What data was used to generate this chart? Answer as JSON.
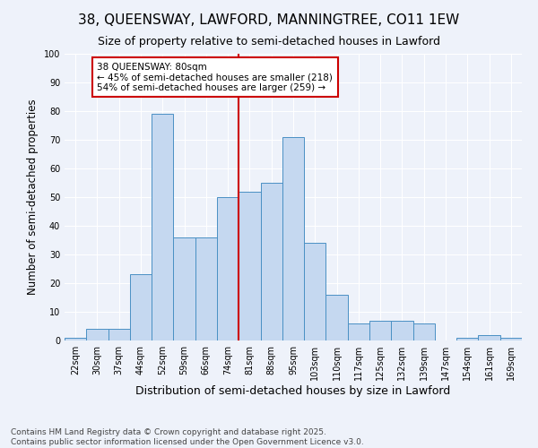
{
  "title": "38, QUEENSWAY, LAWFORD, MANNINGTREE, CO11 1EW",
  "subtitle": "Size of property relative to semi-detached houses in Lawford",
  "xlabel": "Distribution of semi-detached houses by size in Lawford",
  "ylabel": "Number of semi-detached properties",
  "categories": [
    "22sqm",
    "30sqm",
    "37sqm",
    "44sqm",
    "52sqm",
    "59sqm",
    "66sqm",
    "74sqm",
    "81sqm",
    "88sqm",
    "95sqm",
    "103sqm",
    "110sqm",
    "117sqm",
    "125sqm",
    "132sqm",
    "139sqm",
    "147sqm",
    "154sqm",
    "161sqm",
    "169sqm"
  ],
  "values": [
    1,
    4,
    4,
    23,
    79,
    36,
    36,
    50,
    52,
    55,
    71,
    34,
    16,
    6,
    7,
    7,
    6,
    0,
    1,
    2,
    1
  ],
  "bar_color": "#c5d8f0",
  "bar_edge_color": "#4a90c4",
  "annotation_text": "38 QUEENSWAY: 80sqm\n← 45% of semi-detached houses are smaller (218)\n54% of semi-detached houses are larger (259) →",
  "property_line_x": 7.5,
  "annotation_box_color": "#ffffff",
  "annotation_box_edge_color": "#cc0000",
  "property_line_color": "#cc0000",
  "ylim": [
    0,
    100
  ],
  "yticks": [
    0,
    10,
    20,
    30,
    40,
    50,
    60,
    70,
    80,
    90,
    100
  ],
  "background_color": "#eef2fa",
  "footer_text": "Contains HM Land Registry data © Crown copyright and database right 2025.\nContains public sector information licensed under the Open Government Licence v3.0.",
  "title_fontsize": 11,
  "subtitle_fontsize": 9,
  "axis_label_fontsize": 8.5,
  "tick_fontsize": 7,
  "annotation_fontsize": 7.5,
  "footer_fontsize": 6.5
}
